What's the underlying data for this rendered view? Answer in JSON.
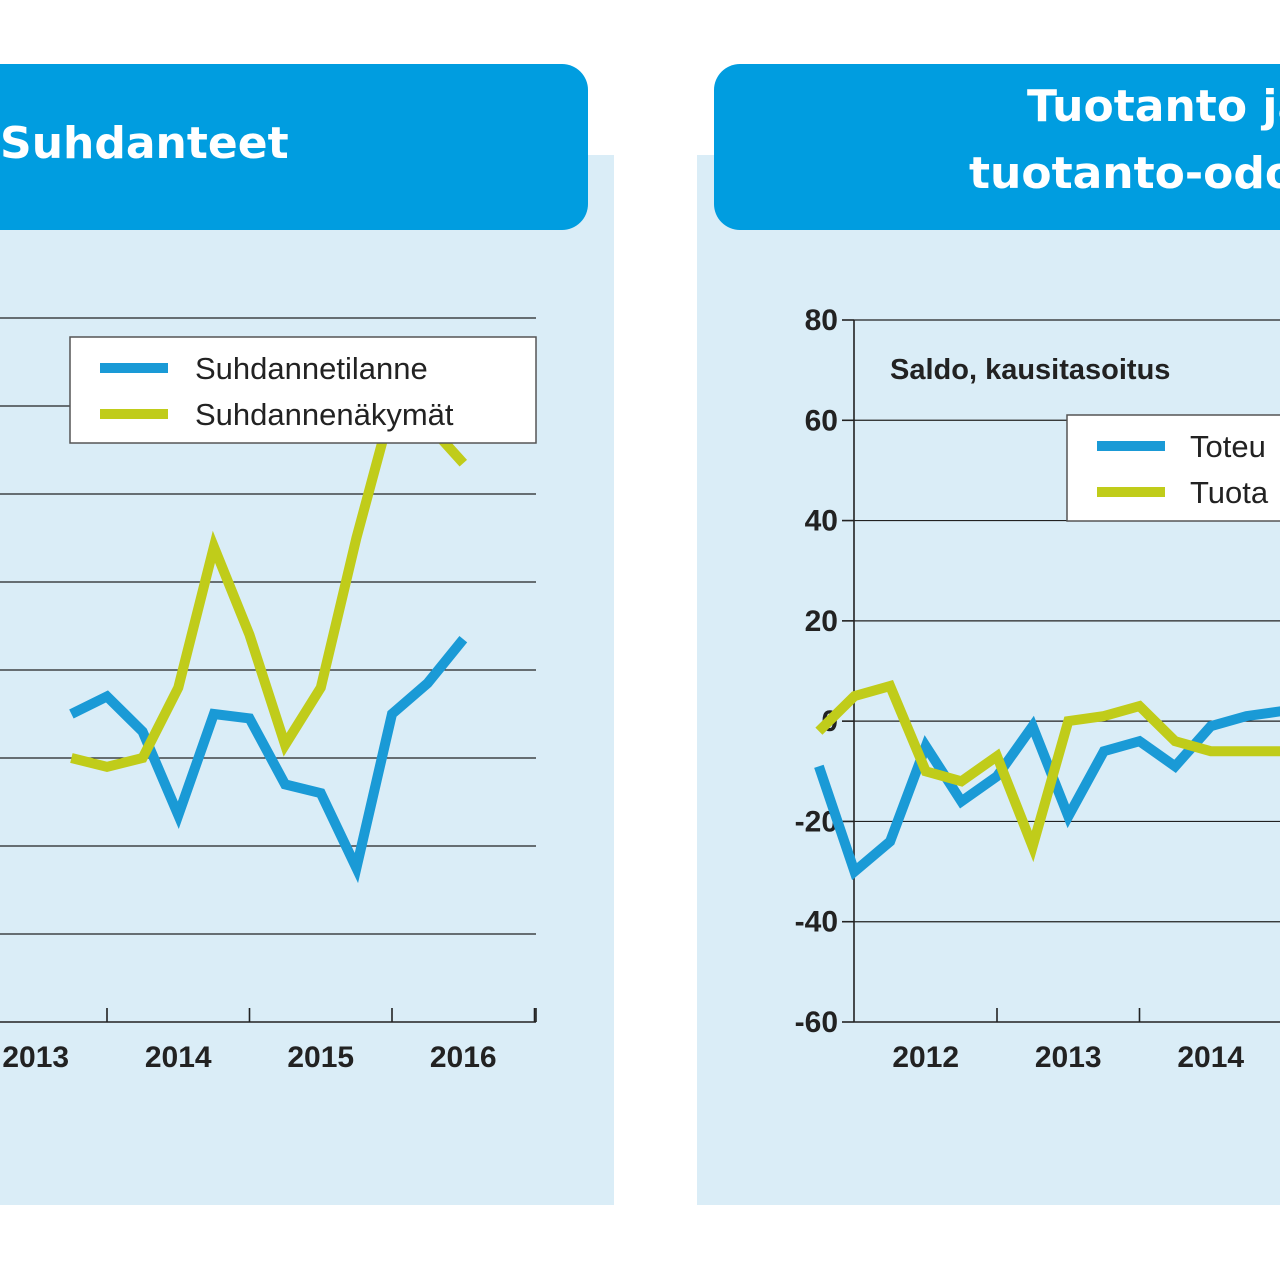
{
  "panels": [
    {
      "title": "Suhdanteet",
      "chart_data": {
        "type": "line",
        "title": "Suhdanteet",
        "x_tick_labels": [
          "2013",
          "2014",
          "2015",
          "2016"
        ],
        "x": [
          2012.75,
          2013.0,
          2013.25,
          2013.5,
          2013.75,
          2014.0,
          2014.25,
          2014.5,
          2014.75,
          2015.0,
          2015.25,
          2015.5,
          2015.75
        ],
        "series": [
          {
            "name": "Suhdannetilanne",
            "color": "#1a9ad6",
            "values": [
              -10,
              -6,
              -14,
              -33,
              -10,
              -11,
              -26,
              -28,
              -45,
              -10,
              -3,
              7,
              null
            ]
          },
          {
            "name": "Suhdannenäkymät",
            "color": "#c0cc1a",
            "values": [
              -20,
              -22,
              -20,
              -4,
              28,
              8,
              -17,
              -4,
              30,
              60,
              56,
              47,
              null
            ]
          }
        ],
        "grid": true,
        "legend_position": "top-right"
      }
    },
    {
      "title_lines": [
        "Tuotanto ja",
        "tuotanto-odo"
      ],
      "chart_data": {
        "type": "line",
        "title": "Tuotanto ja tuotanto-odo",
        "annotation": "Saldo, kausitasoitus",
        "y_ticks": [
          80,
          60,
          40,
          20,
          0,
          -20,
          -40,
          -60
        ],
        "ylim": [
          -60,
          80
        ],
        "x_tick_labels": [
          "2012",
          "2013",
          "2014"
        ],
        "x": [
          2011.75,
          2012.0,
          2012.25,
          2012.5,
          2012.75,
          2013.0,
          2013.25,
          2013.5,
          2013.75,
          2014.0,
          2014.25,
          2014.5,
          2014.75,
          2015.0
        ],
        "series": [
          {
            "name": "Toteu",
            "color": "#1a9ad6",
            "values": [
              -9,
              -30,
              -24,
              -5,
              -16,
              -11,
              -1,
              -19,
              -6,
              -4,
              -9,
              -1,
              1,
              2
            ]
          },
          {
            "name": "Tuota",
            "color": "#c0cc1a",
            "values": [
              -2,
              5,
              7,
              -10,
              -12,
              -7,
              -25,
              0,
              1,
              3,
              -4,
              -6,
              -6,
              -6
            ]
          }
        ],
        "grid": true,
        "legend_position": "top-right"
      }
    }
  ]
}
